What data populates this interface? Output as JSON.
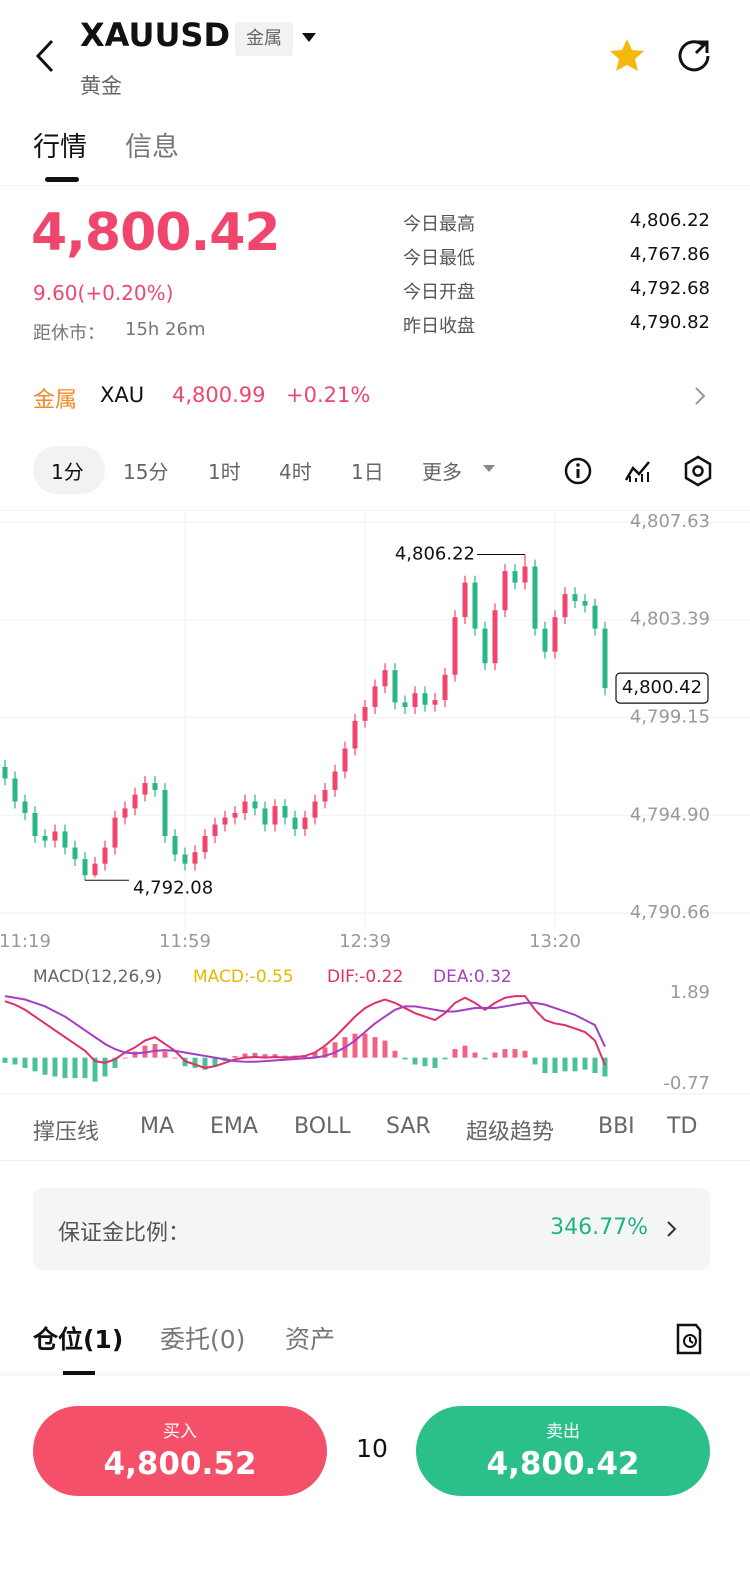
{
  "header": {
    "title": "XAUUSD",
    "tag": "金属",
    "subtitle": "黄金"
  },
  "tabs": [
    "行情",
    "信息"
  ],
  "quote": {
    "price": "4,800.42",
    "change": "9.60(+0.20%)",
    "close_label": "距休市：",
    "close_time": "15h 26m",
    "stats": [
      {
        "label": "今日最高",
        "value": "4,806.22"
      },
      {
        "label": "今日最低",
        "value": "4,767.86"
      },
      {
        "label": "今日开盘",
        "value": "4,792.68"
      },
      {
        "label": "昨日收盘",
        "value": "4,790.82"
      }
    ]
  },
  "related": {
    "category": "金属",
    "symbol": "XAU",
    "price": "4,800.99",
    "change": "+0.21%"
  },
  "intervals": [
    "1分",
    "15分",
    "1时",
    "4时",
    "1日",
    "更多"
  ],
  "chart_data": [
    {
      "type": "candlestick",
      "categories": [
        null,
        null,
        "11:19",
        null,
        null,
        null,
        null,
        null,
        null,
        null,
        null,
        null,
        null,
        null,
        null,
        null,
        null,
        null,
        "11:59",
        null,
        null,
        null,
        null,
        null,
        null,
        null,
        null,
        null,
        null,
        null,
        null,
        null,
        null,
        null,
        null,
        null,
        "12:39",
        null,
        null,
        null,
        null,
        null,
        null,
        null,
        null,
        null,
        null,
        null,
        null,
        null,
        null,
        null,
        null,
        null,
        null,
        "13:20",
        null,
        null,
        null,
        null,
        null
      ],
      "open": [
        4797.0,
        4796.5,
        4795.5,
        4795.0,
        4794.0,
        4793.8,
        4794.2,
        4793.5,
        4793.0,
        4792.3,
        4792.8,
        4793.5,
        4794.8,
        4795.2,
        4795.8,
        4796.3,
        4796.0,
        4794.0,
        4793.2,
        4792.8,
        4793.3,
        4794.0,
        4794.5,
        4794.8,
        4795.0,
        4795.5,
        4795.2,
        4794.5,
        4795.3,
        4794.8,
        4794.3,
        4794.8,
        4795.5,
        4796.0,
        4796.8,
        4797.8,
        4799.0,
        4799.6,
        4800.5,
        4801.2,
        4799.8,
        4799.6,
        4800.2,
        4799.7,
        4799.9,
        4801.0,
        4803.5,
        4805.0,
        4803.0,
        4801.5,
        4803.8,
        4805.5,
        4805.0,
        4805.7,
        4803.0,
        4802.0,
        4803.5,
        4804.5,
        4804.2,
        4804.0,
        4803.0
      ],
      "high": [
        4797.3,
        4796.8,
        4795.8,
        4795.3,
        4794.3,
        4794.5,
        4794.5,
        4793.8,
        4793.3,
        4793.1,
        4793.8,
        4795.1,
        4795.5,
        4796.1,
        4796.6,
        4796.6,
        4796.3,
        4794.3,
        4793.5,
        4793.6,
        4794.3,
        4794.8,
        4795.1,
        4795.3,
        4795.8,
        4795.8,
        4795.5,
        4795.6,
        4795.6,
        4795.1,
        4795.1,
        4795.8,
        4796.3,
        4797.1,
        4798.1,
        4799.3,
        4799.9,
        4800.8,
        4801.5,
        4801.5,
        4800.1,
        4800.5,
        4800.5,
        4800.2,
        4801.3,
        4803.8,
        4805.3,
        4805.3,
        4803.3,
        4804.1,
        4805.8,
        4805.8,
        4806.22,
        4806.0,
        4803.3,
        4803.8,
        4804.8,
        4804.8,
        4804.5,
        4804.3,
        4803.3
      ],
      "low": [
        4796.2,
        4795.2,
        4794.7,
        4793.7,
        4793.5,
        4793.5,
        4793.2,
        4792.7,
        4792.08,
        4792.2,
        4792.5,
        4793.2,
        4794.5,
        4794.9,
        4795.5,
        4795.7,
        4793.7,
        4792.9,
        4792.5,
        4792.5,
        4793.0,
        4793.7,
        4794.2,
        4794.5,
        4794.7,
        4794.9,
        4794.2,
        4794.2,
        4794.5,
        4794.0,
        4794.0,
        4794.5,
        4795.2,
        4795.7,
        4796.5,
        4797.5,
        4798.7,
        4799.3,
        4800.2,
        4799.5,
        4799.3,
        4799.3,
        4799.4,
        4799.4,
        4799.6,
        4800.7,
        4803.2,
        4802.7,
        4801.2,
        4801.2,
        4803.5,
        4804.7,
        4804.7,
        4802.7,
        4801.7,
        4801.7,
        4803.2,
        4803.9,
        4803.7,
        4802.7,
        4800.1
      ],
      "close": [
        4796.5,
        4795.5,
        4795.0,
        4794.0,
        4793.8,
        4794.2,
        4793.5,
        4793.0,
        4792.3,
        4792.8,
        4793.5,
        4794.8,
        4795.2,
        4795.8,
        4796.3,
        4796.0,
        4794.0,
        4793.2,
        4792.8,
        4793.3,
        4794.0,
        4794.5,
        4794.8,
        4795.0,
        4795.5,
        4795.2,
        4794.5,
        4795.3,
        4794.8,
        4794.3,
        4794.8,
        4795.5,
        4796.0,
        4796.8,
        4797.8,
        4799.0,
        4799.6,
        4800.5,
        4801.2,
        4799.8,
        4799.6,
        4800.2,
        4799.7,
        4799.9,
        4801.0,
        4803.5,
        4805.0,
        4803.0,
        4801.5,
        4803.8,
        4805.5,
        4805.0,
        4805.7,
        4803.0,
        4802.0,
        4803.5,
        4804.5,
        4804.2,
        4804.0,
        4803.0,
        4800.42
      ],
      "colors": {
        "up": "#f0466e",
        "down": "#2ab785"
      },
      "ylim": [
        4790.66,
        4807.63
      ],
      "yticks": [
        {
          "value": 4807.63,
          "label": "4,807.63"
        },
        {
          "value": 4803.39,
          "label": "4,803.39"
        },
        {
          "value": 4799.15,
          "label": "4,799.15"
        },
        {
          "value": 4794.9,
          "label": "4,794.90"
        },
        {
          "value": 4790.66,
          "label": "4,790.66"
        }
      ],
      "grid": true,
      "annotations": [
        {
          "value": 4806.22,
          "label": "4,806.22"
        },
        {
          "value": 4792.08,
          "label": "4,792.08"
        }
      ],
      "last_price": {
        "value": 4800.42,
        "label": "4,800.42"
      }
    },
    {
      "type": "macd",
      "title": "MACD(12,26,9)",
      "ylim": [
        -0.77,
        1.89
      ],
      "yticks": [
        1.89,
        -0.77
      ],
      "colors": {
        "up": "#f0466e",
        "down": "#2ab785"
      },
      "series": [
        {
          "name": "MACD:-0.55",
          "color": "#e6b800",
          "kind": "bar",
          "values": [
            -0.15,
            -0.2,
            -0.3,
            -0.4,
            -0.5,
            -0.55,
            -0.6,
            -0.6,
            -0.6,
            -0.7,
            -0.55,
            -0.3,
            0.0,
            0.18,
            0.35,
            0.4,
            0.18,
            0.0,
            -0.25,
            -0.3,
            -0.35,
            -0.25,
            -0.1,
            0.05,
            0.12,
            0.14,
            0.1,
            0.1,
            0.06,
            0.06,
            0.07,
            0.15,
            0.3,
            0.45,
            0.6,
            0.7,
            0.7,
            0.6,
            0.5,
            0.2,
            -0.05,
            -0.2,
            -0.25,
            -0.3,
            -0.05,
            0.25,
            0.35,
            0.15,
            -0.05,
            0.15,
            0.25,
            0.25,
            0.2,
            -0.2,
            -0.45,
            -0.45,
            -0.4,
            -0.4,
            -0.35,
            -0.45,
            -0.55
          ]
        },
        {
          "name": "DIF:-0.22",
          "color": "#e0306a",
          "kind": "line",
          "values": [
            1.65,
            1.55,
            1.4,
            1.2,
            1.0,
            0.8,
            0.6,
            0.4,
            0.2,
            -0.1,
            -0.15,
            -0.05,
            0.15,
            0.3,
            0.5,
            0.6,
            0.4,
            0.2,
            -0.1,
            -0.2,
            -0.3,
            -0.25,
            -0.15,
            -0.05,
            0.0,
            0.02,
            0.0,
            0.02,
            0.0,
            0.02,
            0.05,
            0.15,
            0.35,
            0.6,
            0.9,
            1.2,
            1.45,
            1.6,
            1.7,
            1.6,
            1.45,
            1.3,
            1.2,
            1.1,
            1.3,
            1.6,
            1.75,
            1.6,
            1.4,
            1.6,
            1.75,
            1.8,
            1.8,
            1.4,
            1.1,
            1.0,
            0.95,
            0.85,
            0.75,
            0.5,
            -0.22
          ]
        },
        {
          "name": "DEA:0.32",
          "color": "#a53fc2",
          "kind": "line",
          "values": [
            1.8,
            1.75,
            1.7,
            1.6,
            1.5,
            1.35,
            1.2,
            1.0,
            0.8,
            0.6,
            0.4,
            0.25,
            0.15,
            0.12,
            0.15,
            0.2,
            0.22,
            0.2,
            0.15,
            0.1,
            0.05,
            0.0,
            -0.05,
            -0.1,
            -0.12,
            -0.12,
            -0.1,
            -0.08,
            -0.06,
            -0.04,
            -0.02,
            0.0,
            0.05,
            0.15,
            0.3,
            0.5,
            0.75,
            1.0,
            1.2,
            1.4,
            1.5,
            1.5,
            1.45,
            1.4,
            1.35,
            1.35,
            1.4,
            1.45,
            1.45,
            1.45,
            1.5,
            1.55,
            1.6,
            1.6,
            1.55,
            1.45,
            1.35,
            1.25,
            1.1,
            0.95,
            0.32
          ]
        }
      ]
    }
  ],
  "indicators": [
    "撑压线",
    "MA",
    "EMA",
    "BOLL",
    "SAR",
    "超级趋势",
    "BBI",
    "TD"
  ],
  "margin": {
    "label": "保证金比例：",
    "value": "346.77%"
  },
  "position_tabs": [
    "仓位(1)",
    "委托(0)",
    "资产"
  ],
  "trade": {
    "buy_label": "买入",
    "buy_price": "4,800.52",
    "quantity": "10",
    "sell_label": "卖出",
    "sell_price": "4,800.42"
  }
}
